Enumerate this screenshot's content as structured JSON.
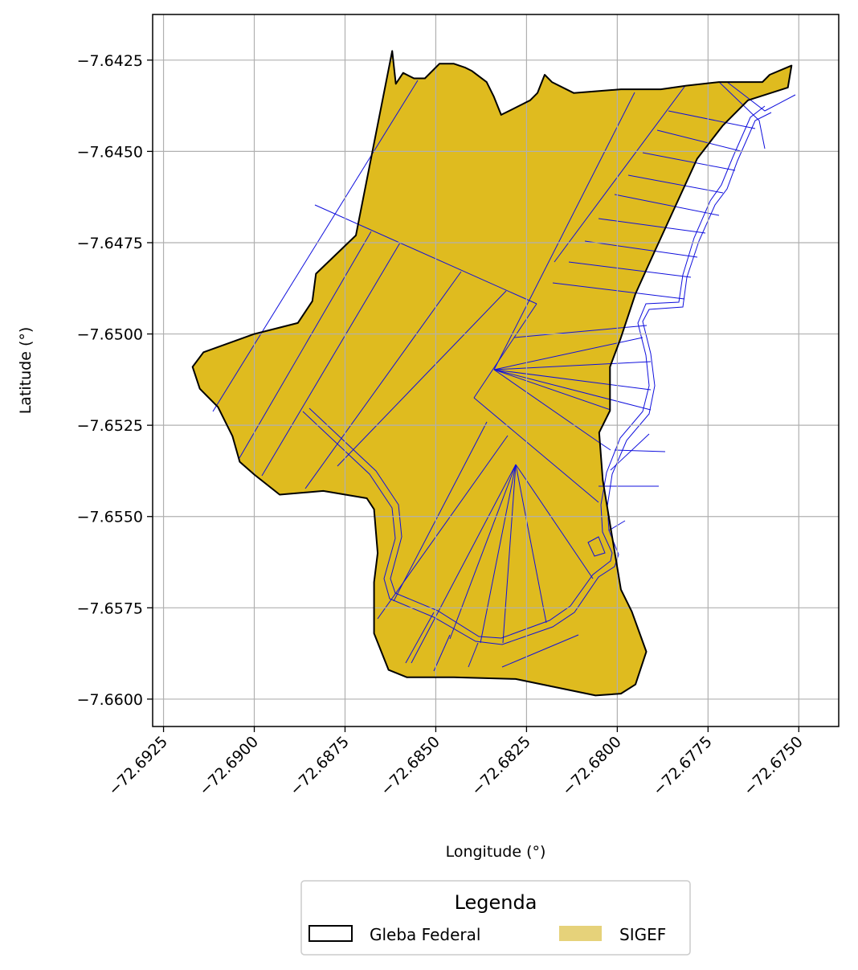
{
  "chart_data": {
    "type": "map",
    "xlabel": "Longitude (°)",
    "ylabel": "Latitude (°)",
    "xlim": [
      -72.6928,
      -72.6739
    ],
    "ylim": [
      -7.66075,
      -7.64125
    ],
    "x_ticks": [
      -72.6925,
      -72.69,
      -72.6875,
      -72.685,
      -72.6825,
      -72.68,
      -72.6775,
      -72.675
    ],
    "x_tick_labels": [
      "−72.6925",
      "−72.6900",
      "−72.6875",
      "−72.6850",
      "−72.6825",
      "−72.6800",
      "−72.6775",
      "−72.6750"
    ],
    "y_ticks": [
      -7.6425,
      -7.645,
      -7.6475,
      -7.65,
      -7.6525,
      -7.655,
      -7.6575,
      -7.66
    ],
    "y_tick_labels": [
      "−7.6425",
      "−7.6450",
      "−7.6475",
      "−7.6500",
      "−7.6525",
      "−7.6550",
      "−7.6575",
      "−7.6600"
    ],
    "grid": true,
    "legend": {
      "title": "Legenda",
      "placement": "bottom-center, below axes",
      "entries": [
        {
          "label": "Gleba Federal",
          "style": "outline",
          "color": "#000000"
        },
        {
          "label": "SIGEF",
          "style": "fill",
          "color": "#e6d27a"
        }
      ]
    },
    "layers": {
      "gleba_federal": {
        "edge_color": "#000000",
        "outline": [
          [
            -72.6862,
            -7.64225
          ],
          [
            -72.6872,
            -7.6473
          ],
          [
            -72.6883,
            -7.64835
          ],
          [
            -72.6884,
            -7.6491
          ],
          [
            -72.6888,
            -7.6497
          ],
          [
            -72.69,
            -7.65
          ],
          [
            -72.6914,
            -7.6505
          ],
          [
            -72.6917,
            -7.6509
          ],
          [
            -72.6915,
            -7.6515
          ],
          [
            -72.691,
            -7.652
          ],
          [
            -72.6906,
            -7.6528
          ],
          [
            -72.6904,
            -7.6535
          ],
          [
            -72.69,
            -7.65385
          ],
          [
            -72.6893,
            -7.6544
          ],
          [
            -72.6881,
            -7.6543
          ],
          [
            -72.6869,
            -7.6545
          ],
          [
            -72.6867,
            -7.6548
          ],
          [
            -72.6866,
            -7.656
          ],
          [
            -72.6867,
            -7.6568
          ],
          [
            -72.6867,
            -7.6582
          ],
          [
            -72.6863,
            -7.6592
          ],
          [
            -72.6858,
            -7.6594
          ],
          [
            -72.6845,
            -7.6594
          ],
          [
            -72.6828,
            -7.65945
          ],
          [
            -72.6806,
            -7.6599
          ],
          [
            -72.6799,
            -7.65985
          ],
          [
            -72.6795,
            -7.6596
          ],
          [
            -72.6792,
            -7.6587
          ],
          [
            -72.6796,
            -7.6576
          ],
          [
            -72.6799,
            -7.657
          ],
          [
            -72.6802,
            -7.6552
          ],
          [
            -72.6804,
            -7.654
          ],
          [
            -72.6805,
            -7.6527
          ],
          [
            -72.6802,
            -7.6521
          ],
          [
            -72.6802,
            -7.6509
          ],
          [
            -72.6799,
            -7.6501
          ],
          [
            -72.6795,
            -7.6489
          ],
          [
            -72.679,
            -7.6478
          ],
          [
            -72.6784,
            -7.6465
          ],
          [
            -72.6778,
            -7.6452
          ],
          [
            -72.6771,
            -7.6443
          ],
          [
            -72.6764,
            -7.6436
          ],
          [
            -72.6753,
            -7.64325
          ],
          [
            -72.6752,
            -7.64265
          ],
          [
            -72.6758,
            -7.6429
          ],
          [
            -72.676,
            -7.6431
          ],
          [
            -72.6772,
            -7.6431
          ],
          [
            -72.6781,
            -7.6432
          ],
          [
            -72.6788,
            -7.6433
          ],
          [
            -72.6799,
            -7.6433
          ],
          [
            -72.6812,
            -7.6434
          ],
          [
            -72.6818,
            -7.6431
          ],
          [
            -72.682,
            -7.6429
          ],
          [
            -72.6822,
            -7.6434
          ],
          [
            -72.6824,
            -7.6436
          ],
          [
            -72.6828,
            -7.6438
          ],
          [
            -72.6832,
            -7.644
          ],
          [
            -72.6834,
            -7.6435
          ],
          [
            -72.6836,
            -7.6431
          ],
          [
            -72.684,
            -7.6428
          ],
          [
            -72.6842,
            -7.6427
          ],
          [
            -72.6845,
            -7.6426
          ],
          [
            -72.6849,
            -7.6426
          ],
          [
            -72.6853,
            -7.643
          ],
          [
            -72.6856,
            -7.643
          ],
          [
            -72.6859,
            -7.64285
          ],
          [
            -72.6861,
            -7.64315
          ]
        ]
      },
      "sigef": {
        "fill_color": "#dfbb1f",
        "edge_color": "#1010dd",
        "note": "parcels tile the entire Gleba Federal area"
      }
    }
  }
}
